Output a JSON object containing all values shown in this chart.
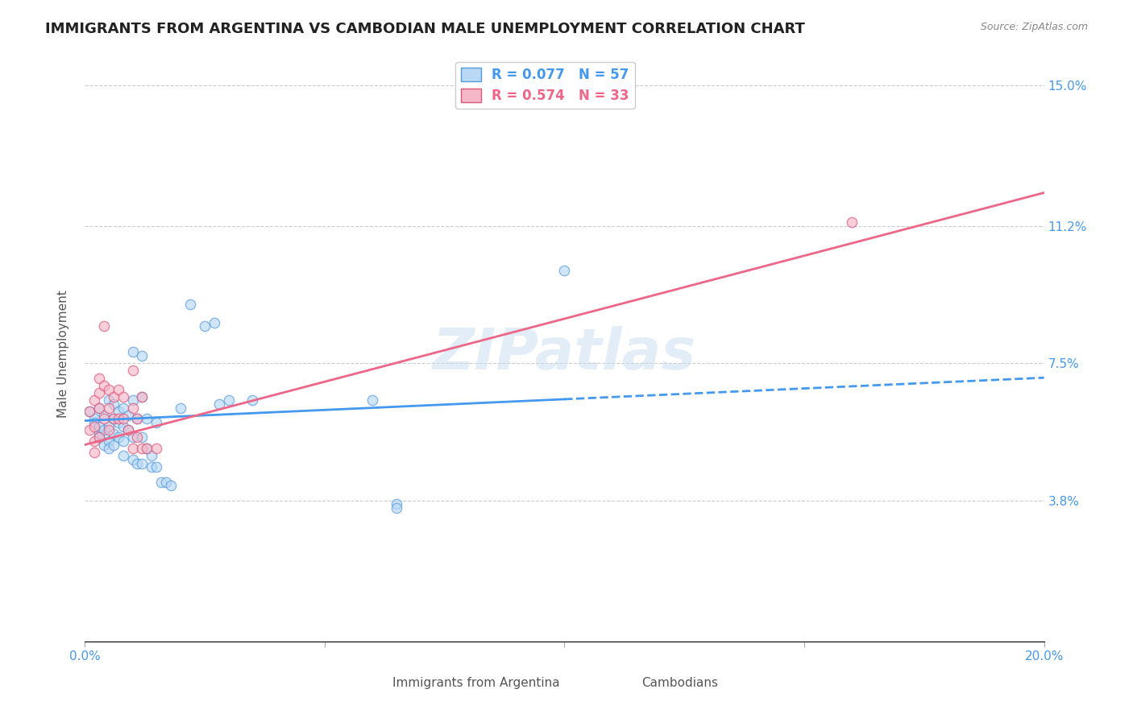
{
  "title": "IMMIGRANTS FROM ARGENTINA VS CAMBODIAN MALE UNEMPLOYMENT CORRELATION CHART",
  "source": "Source: ZipAtlas.com",
  "ylabel": "Male Unemployment",
  "xlim": [
    0.0,
    0.2
  ],
  "ylim": [
    0.0,
    0.155
  ],
  "yticks": [
    0.038,
    0.075,
    0.112,
    0.15
  ],
  "ytick_labels": [
    "3.8%",
    "7.5%",
    "11.2%",
    "15.0%"
  ],
  "xticks": [
    0.0,
    0.05,
    0.1,
    0.15,
    0.2
  ],
  "xtick_labels": [
    "0.0%",
    "",
    "",
    "",
    "20.0%"
  ],
  "legend_label_1": "R = 0.077   N = 57",
  "legend_label_2": "R = 0.574   N = 33",
  "watermark": "ZIPatlas",
  "argentina_scatter": [
    [
      0.001,
      0.062
    ],
    [
      0.002,
      0.06
    ],
    [
      0.002,
      0.059
    ],
    [
      0.003,
      0.063
    ],
    [
      0.003,
      0.056
    ],
    [
      0.003,
      0.058
    ],
    [
      0.003,
      0.055
    ],
    [
      0.004,
      0.061
    ],
    [
      0.004,
      0.057
    ],
    [
      0.004,
      0.053
    ],
    [
      0.005,
      0.065
    ],
    [
      0.005,
      0.058
    ],
    [
      0.005,
      0.054
    ],
    [
      0.005,
      0.052
    ],
    [
      0.006,
      0.064
    ],
    [
      0.006,
      0.06
    ],
    [
      0.006,
      0.056
    ],
    [
      0.006,
      0.053
    ],
    [
      0.007,
      0.062
    ],
    [
      0.007,
      0.059
    ],
    [
      0.007,
      0.055
    ],
    [
      0.008,
      0.063
    ],
    [
      0.008,
      0.058
    ],
    [
      0.008,
      0.054
    ],
    [
      0.008,
      0.05
    ],
    [
      0.009,
      0.061
    ],
    [
      0.009,
      0.057
    ],
    [
      0.01,
      0.078
    ],
    [
      0.01,
      0.065
    ],
    [
      0.01,
      0.055
    ],
    [
      0.01,
      0.049
    ],
    [
      0.011,
      0.06
    ],
    [
      0.011,
      0.048
    ],
    [
      0.012,
      0.077
    ],
    [
      0.012,
      0.066
    ],
    [
      0.012,
      0.055
    ],
    [
      0.012,
      0.048
    ],
    [
      0.013,
      0.06
    ],
    [
      0.013,
      0.052
    ],
    [
      0.014,
      0.05
    ],
    [
      0.014,
      0.047
    ],
    [
      0.015,
      0.059
    ],
    [
      0.015,
      0.047
    ],
    [
      0.016,
      0.043
    ],
    [
      0.017,
      0.043
    ],
    [
      0.018,
      0.042
    ],
    [
      0.02,
      0.063
    ],
    [
      0.022,
      0.091
    ],
    [
      0.025,
      0.085
    ],
    [
      0.027,
      0.086
    ],
    [
      0.028,
      0.064
    ],
    [
      0.03,
      0.065
    ],
    [
      0.035,
      0.065
    ],
    [
      0.06,
      0.065
    ],
    [
      0.065,
      0.037
    ],
    [
      0.065,
      0.036
    ],
    [
      0.1,
      0.1
    ]
  ],
  "cambodian_scatter": [
    [
      0.001,
      0.062
    ],
    [
      0.001,
      0.057
    ],
    [
      0.002,
      0.065
    ],
    [
      0.002,
      0.058
    ],
    [
      0.002,
      0.054
    ],
    [
      0.002,
      0.051
    ],
    [
      0.003,
      0.071
    ],
    [
      0.003,
      0.067
    ],
    [
      0.003,
      0.063
    ],
    [
      0.003,
      0.055
    ],
    [
      0.004,
      0.085
    ],
    [
      0.004,
      0.069
    ],
    [
      0.004,
      0.06
    ],
    [
      0.005,
      0.068
    ],
    [
      0.005,
      0.063
    ],
    [
      0.005,
      0.057
    ],
    [
      0.006,
      0.066
    ],
    [
      0.006,
      0.06
    ],
    [
      0.007,
      0.068
    ],
    [
      0.007,
      0.06
    ],
    [
      0.008,
      0.066
    ],
    [
      0.008,
      0.06
    ],
    [
      0.009,
      0.057
    ],
    [
      0.01,
      0.073
    ],
    [
      0.01,
      0.063
    ],
    [
      0.01,
      0.052
    ],
    [
      0.011,
      0.06
    ],
    [
      0.011,
      0.055
    ],
    [
      0.012,
      0.066
    ],
    [
      0.012,
      0.052
    ],
    [
      0.013,
      0.052
    ],
    [
      0.015,
      0.052
    ],
    [
      0.16,
      0.113
    ]
  ],
  "arg_line_slope": 0.058,
  "arg_line_intercept": 0.0595,
  "arg_line_color": "#4499ee",
  "arg_line_solid_end": 0.1,
  "camb_line_slope": 0.34,
  "camb_line_intercept": 0.053,
  "camb_line_color": "#ee6688",
  "background_color": "#ffffff",
  "grid_color": "#cccccc",
  "title_fontsize": 13,
  "label_fontsize": 11,
  "tick_fontsize": 11,
  "scatter_size": 80,
  "scatter_alpha": 0.65,
  "argentina_scatter_color": "#b8d8f5",
  "argentina_scatter_edge": "#5599dd",
  "cambodian_scatter_color": "#f5b8c8",
  "cambodian_scatter_edge": "#dd5577",
  "legend_box_color_1": "#b8d8f5",
  "legend_box_edge_1": "#5599dd",
  "legend_box_color_2": "#f5b8c8",
  "legend_box_edge_2": "#dd5577",
  "legend_text_color_1": "#4499ee",
  "legend_text_color_2": "#ee6688",
  "right_axis_tick_color": "#4499ee",
  "xlabel_bottom_1": "Immigrants from Argentina",
  "xlabel_bottom_2": "Cambodians"
}
